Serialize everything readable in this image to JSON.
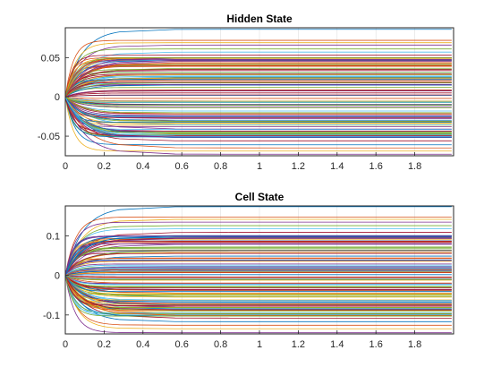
{
  "colors": [
    "#0072BD",
    "#D95319",
    "#EDB120",
    "#7E2F8E",
    "#77AC30",
    "#4DBEEE",
    "#A2142F"
  ],
  "chart_data": [
    {
      "type": "line",
      "title": "Hidden State",
      "xlim": [
        0,
        2
      ],
      "ylim": [
        -0.075,
        0.088
      ],
      "grid": "vertical",
      "legend": "none",
      "xticks": [
        0,
        0.2,
        0.4,
        0.6,
        0.8,
        1,
        1.2,
        1.4,
        1.6,
        1.8
      ],
      "xtick_labels": [
        "0",
        "0.2",
        "0.4",
        "0.6",
        "0.8",
        "1",
        "1.2",
        "1.4",
        "1.6",
        "1.8"
      ],
      "yticks": [
        -0.05,
        0,
        0.05
      ],
      "ytick_labels": [
        "-0.05",
        "0",
        "0.05"
      ],
      "series_count": 128,
      "settle_x": 0.2,
      "final_values": [
        0.086,
        0.072,
        0.069,
        0.066,
        0.061,
        0.057,
        0.053,
        0.049,
        0.046,
        0.043,
        0.039,
        0.035,
        0.031,
        0.028,
        0.025,
        0.022,
        0.019,
        0.015,
        0.012,
        0.008,
        0.005,
        0.002,
        -0.002,
        -0.006,
        -0.01,
        -0.014,
        -0.018,
        -0.022,
        -0.026,
        -0.031,
        -0.036,
        -0.041,
        -0.046,
        -0.051,
        -0.056,
        -0.061,
        -0.065,
        -0.069,
        -0.073
      ],
      "envelope": {
        "upper": 0.05,
        "lower": -0.052
      }
    },
    {
      "type": "line",
      "title": "Cell State",
      "xlim": [
        0,
        2
      ],
      "ylim": [
        -0.148,
        0.176
      ],
      "grid": "vertical",
      "legend": "none",
      "xticks": [
        0,
        0.2,
        0.4,
        0.6,
        0.8,
        1,
        1.2,
        1.4,
        1.6,
        1.8
      ],
      "xtick_labels": [
        "0",
        "0.2",
        "0.4",
        "0.6",
        "0.8",
        "1",
        "1.2",
        "1.4",
        "1.6",
        "1.8"
      ],
      "yticks": [
        -0.1,
        0,
        0.1
      ],
      "ytick_labels": [
        "-0.1",
        "0",
        "0.1"
      ],
      "series_count": 128,
      "settle_x": 0.2,
      "final_values": [
        0.174,
        0.148,
        0.142,
        0.135,
        0.126,
        0.118,
        0.109,
        0.101,
        0.094,
        0.087,
        0.079,
        0.071,
        0.063,
        0.056,
        0.049,
        0.043,
        0.036,
        0.029,
        0.022,
        0.015,
        0.008,
        0.002,
        -0.005,
        -0.012,
        -0.02,
        -0.028,
        -0.036,
        -0.045,
        -0.054,
        -0.063,
        -0.072,
        -0.081,
        -0.09,
        -0.099,
        -0.108,
        -0.117,
        -0.126,
        -0.135,
        -0.145
      ],
      "envelope": {
        "upper": 0.1,
        "lower": -0.103
      }
    }
  ]
}
